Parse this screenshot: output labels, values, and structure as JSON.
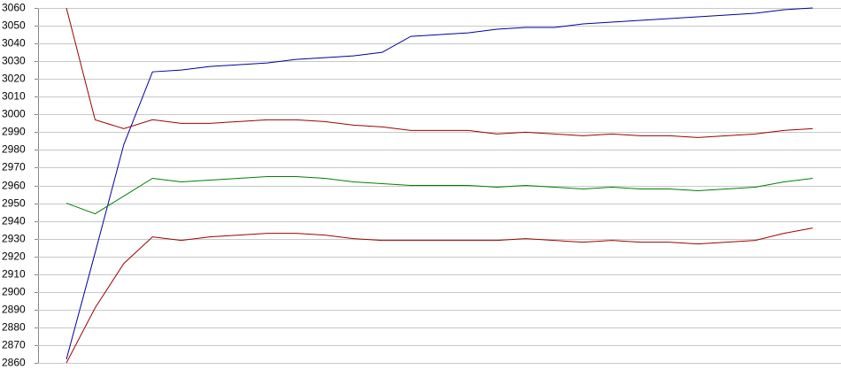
{
  "chart_data": {
    "type": "line",
    "categories": [
      null,
      null,
      null,
      null,
      null,
      null,
      null,
      null,
      null,
      null,
      null,
      null,
      null,
      null,
      null,
      null,
      null,
      null,
      null,
      null,
      null,
      null,
      null,
      null,
      null,
      null,
      null
    ],
    "series": [
      {
        "color": "#0000a0",
        "values": [
          2862,
          2922,
          2983,
          3024,
          3025,
          3027,
          3028,
          3029,
          3031,
          3032,
          3033,
          3035,
          3044,
          3045,
          3046,
          3048,
          3049,
          3049,
          3051,
          3052,
          3053,
          3054,
          3055,
          3056,
          3057,
          3059,
          3060
        ]
      },
      {
        "color": "#a00000",
        "values": [
          3060,
          2997,
          2992,
          2997,
          2995,
          2995,
          2996,
          2997,
          2997,
          2996,
          2994,
          2993,
          2991,
          2991,
          2991,
          2989,
          2990,
          2989,
          2988,
          2989,
          2988,
          2988,
          2987,
          2988,
          2989,
          2991,
          2992
        ]
      },
      {
        "color": "#008000",
        "values": [
          2950,
          2944,
          2954,
          2964,
          2962,
          2963,
          2964,
          2965,
          2965,
          2964,
          2962,
          2961,
          2960,
          2960,
          2960,
          2959,
          2960,
          2959,
          2958,
          2959,
          2958,
          2958,
          2957,
          2958,
          2959,
          2962,
          2964
        ]
      },
      {
        "color": "#a00000",
        "values": [
          2860,
          2891,
          2916,
          2931,
          2929,
          2931,
          2932,
          2933,
          2933,
          2932,
          2930,
          2929,
          2929,
          2929,
          2929,
          2929,
          2930,
          2929,
          2928,
          2929,
          2928,
          2928,
          2927,
          2928,
          2929,
          2933,
          2936
        ]
      }
    ],
    "ylim": [
      2860,
      3060
    ],
    "yticks": [
      2860,
      2870,
      2880,
      2890,
      2900,
      2910,
      2920,
      2930,
      2940,
      2950,
      2960,
      2970,
      2980,
      2990,
      3000,
      3010,
      3020,
      3030,
      3040,
      3050,
      3060
    ],
    "grid": true
  }
}
